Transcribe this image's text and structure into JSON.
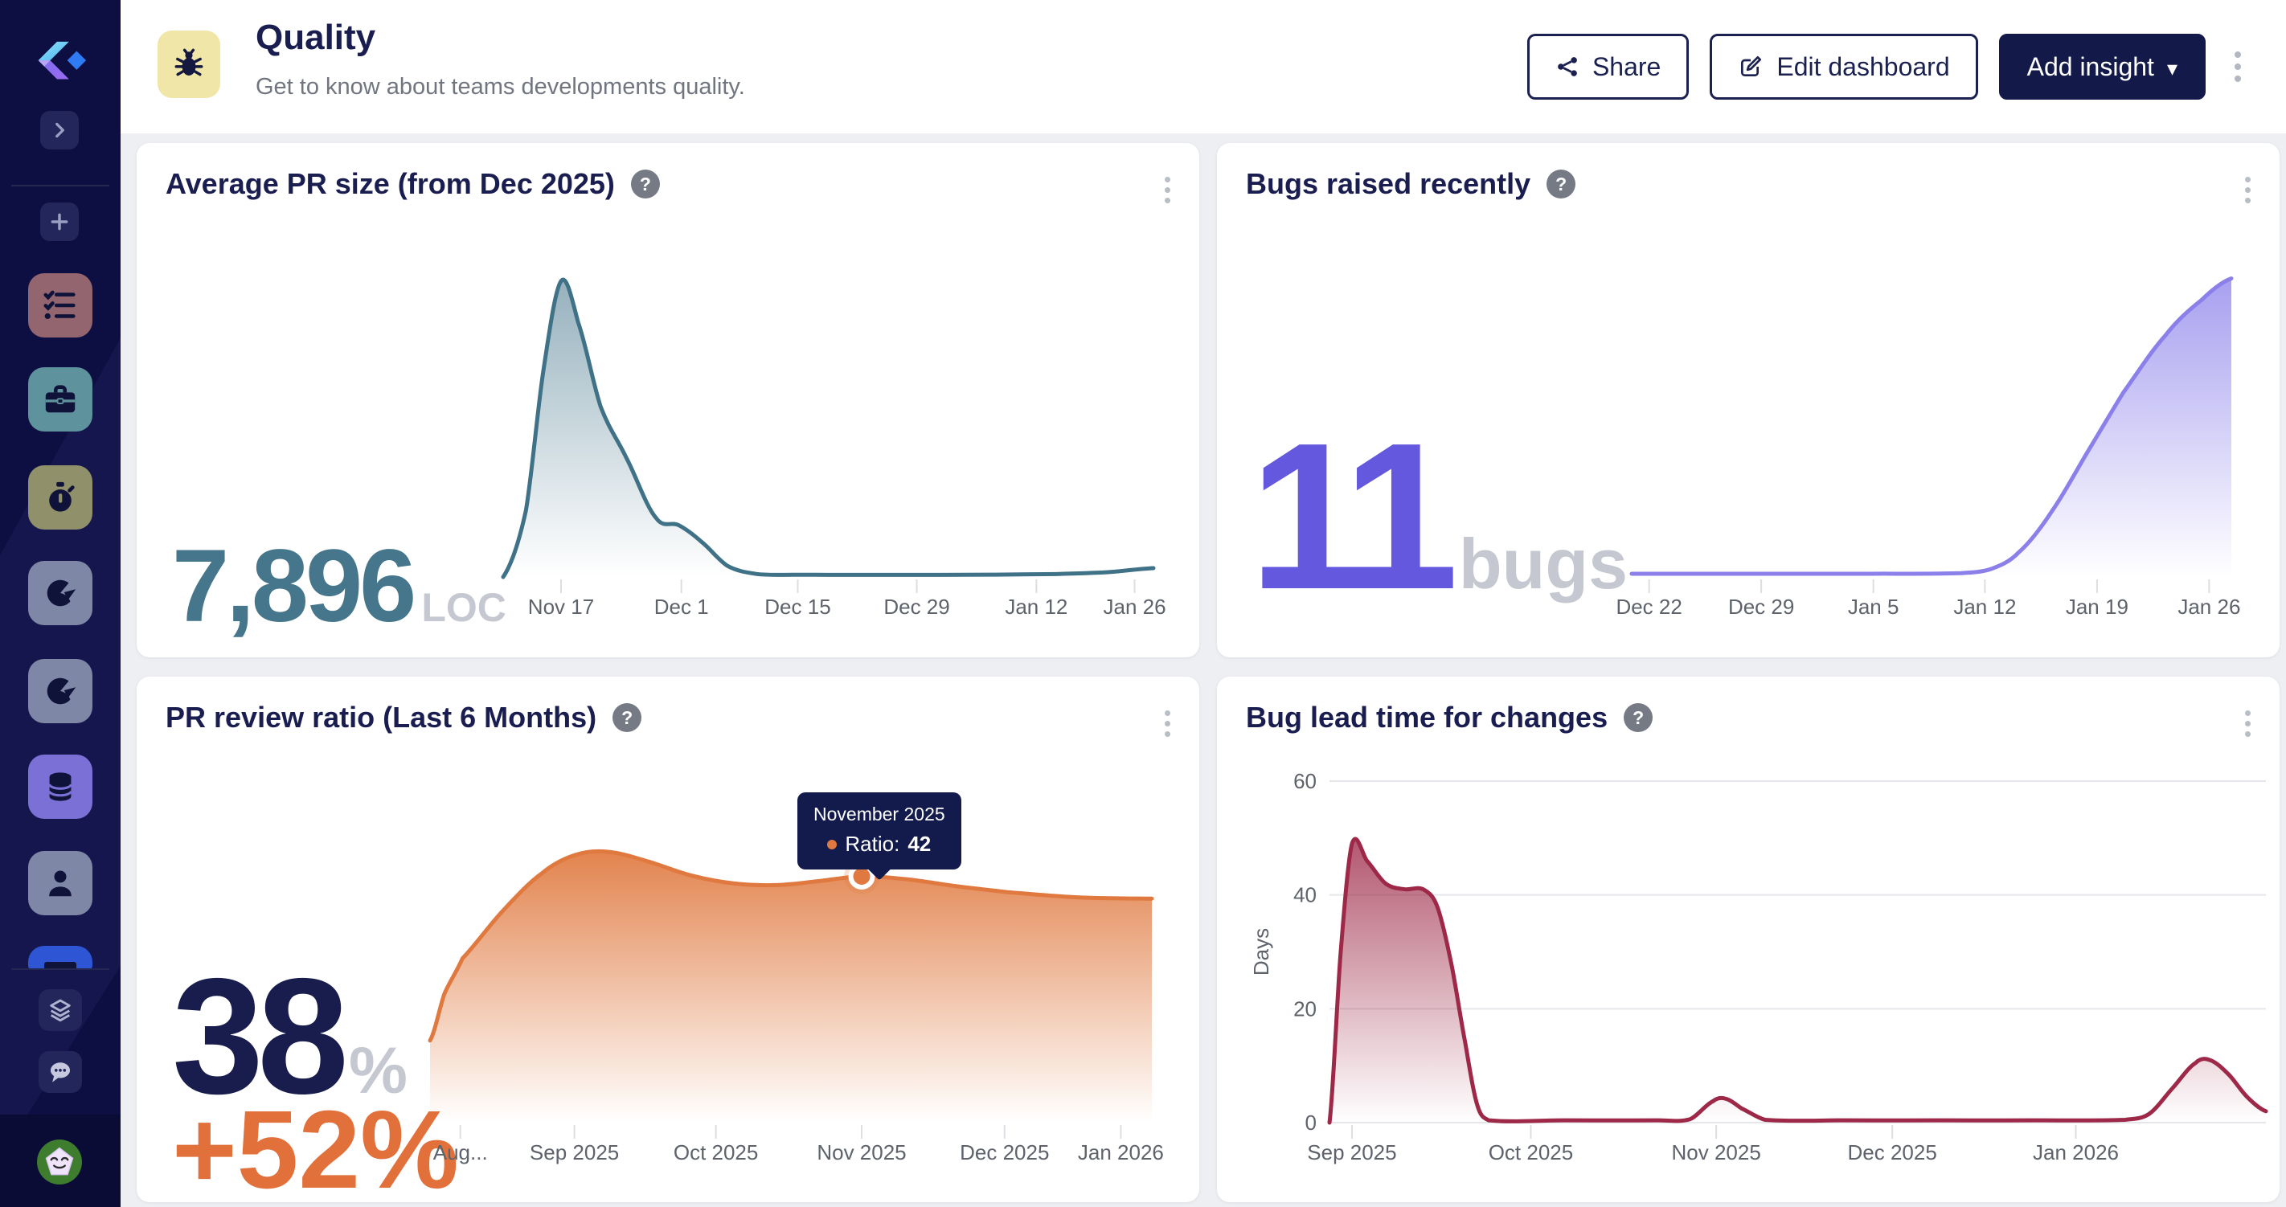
{
  "colors": {
    "accent_navy": "#1a2150",
    "background": "#edeff3",
    "sidebar": "#0d0f42"
  },
  "sidebar": {
    "items": [
      {
        "id": "collapse",
        "icon": "chevron-right"
      },
      {
        "id": "add",
        "icon": "plus"
      },
      {
        "id": "tasks",
        "icon": "task-list"
      },
      {
        "id": "projects",
        "icon": "briefcase"
      },
      {
        "id": "cycle-time",
        "icon": "stopwatch"
      },
      {
        "id": "reports",
        "icon": "pie-chart"
      },
      {
        "id": "insights",
        "icon": "pie-chart"
      },
      {
        "id": "data",
        "icon": "database"
      },
      {
        "id": "people",
        "icon": "user"
      },
      {
        "id": "integrations",
        "icon": "layers"
      },
      {
        "id": "chat",
        "icon": "chat-bubble"
      }
    ]
  },
  "header": {
    "icon": "bug",
    "title": "Quality",
    "subtitle": "Get to know about teams developments quality.",
    "share_label": "Share",
    "edit_label": "Edit dashboard",
    "add_insight_label": "Add insight"
  },
  "chart_data": [
    {
      "id": "avg-pr-size",
      "type": "area",
      "title": "Average PR size (from Dec 2025)",
      "headline": {
        "value": "7,896",
        "unit": "LOC"
      },
      "line_color": "#3f7187",
      "fill_top": "rgba(63,113,135,0.55)",
      "fill_bottom": "rgba(63,113,135,0)",
      "ylim": [
        0,
        8300
      ],
      "ymax": 8300,
      "grid": false,
      "legend": false,
      "x_labels": [
        {
          "t": "Nov 17",
          "f": 0.089
        },
        {
          "t": "Dec 1",
          "f": 0.274
        },
        {
          "t": "Dec 15",
          "f": 0.453
        },
        {
          "t": "Dec 29",
          "f": 0.636
        },
        {
          "t": "Jan 12",
          "f": 0.82
        },
        {
          "t": "Jan 26",
          "f": 0.971
        }
      ],
      "points": [
        [
          0,
          0
        ],
        [
          0.035,
          1800
        ],
        [
          0.062,
          5600
        ],
        [
          0.089,
          8000
        ],
        [
          0.115,
          6900
        ],
        [
          0.15,
          4600
        ],
        [
          0.19,
          3200
        ],
        [
          0.235,
          1600
        ],
        [
          0.27,
          1400
        ],
        [
          0.305,
          950
        ],
        [
          0.345,
          300
        ],
        [
          0.39,
          80
        ],
        [
          0.45,
          60
        ],
        [
          0.55,
          58
        ],
        [
          0.65,
          58
        ],
        [
          0.75,
          62
        ],
        [
          0.85,
          80
        ],
        [
          0.93,
          130
        ],
        [
          1,
          240
        ]
      ]
    },
    {
      "id": "bugs-raised",
      "type": "area",
      "title": "Bugs raised recently",
      "headline": {
        "value": "11",
        "unit": "bugs"
      },
      "line_color": "#8b80ea",
      "fill_top": "rgba(139,128,234,0.75)",
      "fill_bottom": "rgba(139,128,234,0)",
      "ylim": [
        0,
        11.4
      ],
      "ymax": 11.4,
      "grid": false,
      "legend": false,
      "x_labels": [
        {
          "t": "Dec 22",
          "f": 0.029
        },
        {
          "t": "Dec 29",
          "f": 0.216
        },
        {
          "t": "Jan 5",
          "f": 0.403
        },
        {
          "t": "Jan 12",
          "f": 0.589
        },
        {
          "t": "Jan 19",
          "f": 0.776
        },
        {
          "t": "Jan 26",
          "f": 0.963
        }
      ],
      "points": [
        [
          0,
          0.12
        ],
        [
          0.2,
          0.12
        ],
        [
          0.4,
          0.12
        ],
        [
          0.55,
          0.14
        ],
        [
          0.6,
          0.3
        ],
        [
          0.645,
          0.9
        ],
        [
          0.7,
          2.4
        ],
        [
          0.76,
          4.6
        ],
        [
          0.82,
          6.8
        ],
        [
          0.89,
          8.9
        ],
        [
          0.95,
          10.2
        ],
        [
          1,
          11
        ]
      ]
    },
    {
      "id": "pr-review-ratio",
      "type": "area",
      "title": "PR review ratio (Last 6 Months)",
      "headline": {
        "value": "38",
        "unit": "%",
        "delta": "+52%"
      },
      "line_color": "#e0793f",
      "fill_top": "rgba(224,121,63,0.92)",
      "fill_bottom": "rgba(224,121,63,0)",
      "ylim": [
        0,
        47
      ],
      "ymax": 47,
      "grid": false,
      "legend": false,
      "marker": {
        "f": 0.598,
        "v": 42
      },
      "tooltip": {
        "title": "November 2025",
        "label": "Ratio:",
        "value": "42"
      },
      "x_labels": [
        {
          "t": "Aug...",
          "f": 0.042
        },
        {
          "t": "Sep 2025",
          "f": 0.2
        },
        {
          "t": "Oct 2025",
          "f": 0.396
        },
        {
          "t": "Nov 2025",
          "f": 0.598
        },
        {
          "t": "Dec 2025",
          "f": 0.796
        },
        {
          "t": "Jan 2026",
          "f": 0.957
        }
      ],
      "points": [
        [
          0,
          14
        ],
        [
          0.02,
          22
        ],
        [
          0.045,
          28
        ],
        [
          0.1,
          36
        ],
        [
          0.155,
          42.5
        ],
        [
          0.2,
          45.6
        ],
        [
          0.245,
          46.2
        ],
        [
          0.3,
          44.6
        ],
        [
          0.36,
          42.2
        ],
        [
          0.42,
          40.8
        ],
        [
          0.48,
          40.5
        ],
        [
          0.54,
          41.2
        ],
        [
          0.598,
          42
        ],
        [
          0.66,
          41.5
        ],
        [
          0.73,
          40.3
        ],
        [
          0.8,
          39.3
        ],
        [
          0.9,
          38.4
        ],
        [
          1,
          38.2
        ]
      ]
    },
    {
      "id": "bug-lead-time",
      "type": "area",
      "title": "Bug lead time for changes",
      "line_color": "#9d2847",
      "fill_top": "rgba(157,40,71,0.78)",
      "fill_bottom": "rgba(157,40,71,0)",
      "ylim": [
        0,
        60
      ],
      "ymax": 60,
      "grid": true,
      "legend": false,
      "y_axis": {
        "ticks": [
          0,
          20,
          40,
          60
        ],
        "label": "Days"
      },
      "x_labels": [
        {
          "t": "Sep 2025",
          "f": 0.024
        },
        {
          "t": "Oct 2025",
          "f": 0.215
        },
        {
          "t": "Nov 2025",
          "f": 0.413
        },
        {
          "t": "Dec 2025",
          "f": 0.601
        },
        {
          "t": "Jan 2026",
          "f": 0.797
        }
      ],
      "points": [
        [
          0,
          0
        ],
        [
          0.012,
          30
        ],
        [
          0.024,
          49
        ],
        [
          0.04,
          46
        ],
        [
          0.06,
          42
        ],
        [
          0.08,
          41
        ],
        [
          0.1,
          41
        ],
        [
          0.115,
          38
        ],
        [
          0.13,
          28
        ],
        [
          0.145,
          14
        ],
        [
          0.158,
          3
        ],
        [
          0.17,
          0.4
        ],
        [
          0.25,
          0.4
        ],
        [
          0.35,
          0.4
        ],
        [
          0.385,
          0.6
        ],
        [
          0.41,
          3.8
        ],
        [
          0.423,
          4.2
        ],
        [
          0.44,
          2.5
        ],
        [
          0.465,
          0.5
        ],
        [
          0.55,
          0.4
        ],
        [
          0.65,
          0.4
        ],
        [
          0.75,
          0.4
        ],
        [
          0.85,
          0.5
        ],
        [
          0.875,
          1.5
        ],
        [
          0.9,
          6
        ],
        [
          0.925,
          10.5
        ],
        [
          0.94,
          11
        ],
        [
          0.96,
          8.5
        ],
        [
          0.98,
          4.5
        ],
        [
          1,
          2
        ]
      ]
    }
  ]
}
